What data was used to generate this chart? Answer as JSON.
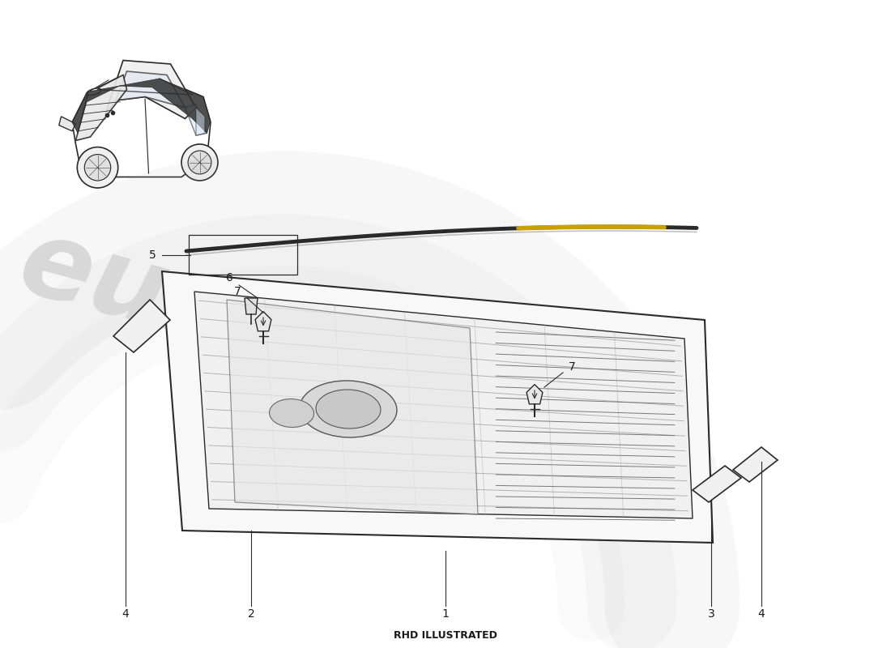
{
  "bg_color": "#ffffff",
  "watermark_color1": "#d8d8d8",
  "watermark_color2": "#e8e8b0",
  "footer_text": "RHD ILLUSTRATED",
  "footer_fontsize": 9,
  "label_fontsize": 10,
  "line_color": "#2a2a2a",
  "part_numbers": [
    "1",
    "2",
    "3",
    "4",
    "4",
    "5",
    "6",
    "7",
    "7"
  ]
}
